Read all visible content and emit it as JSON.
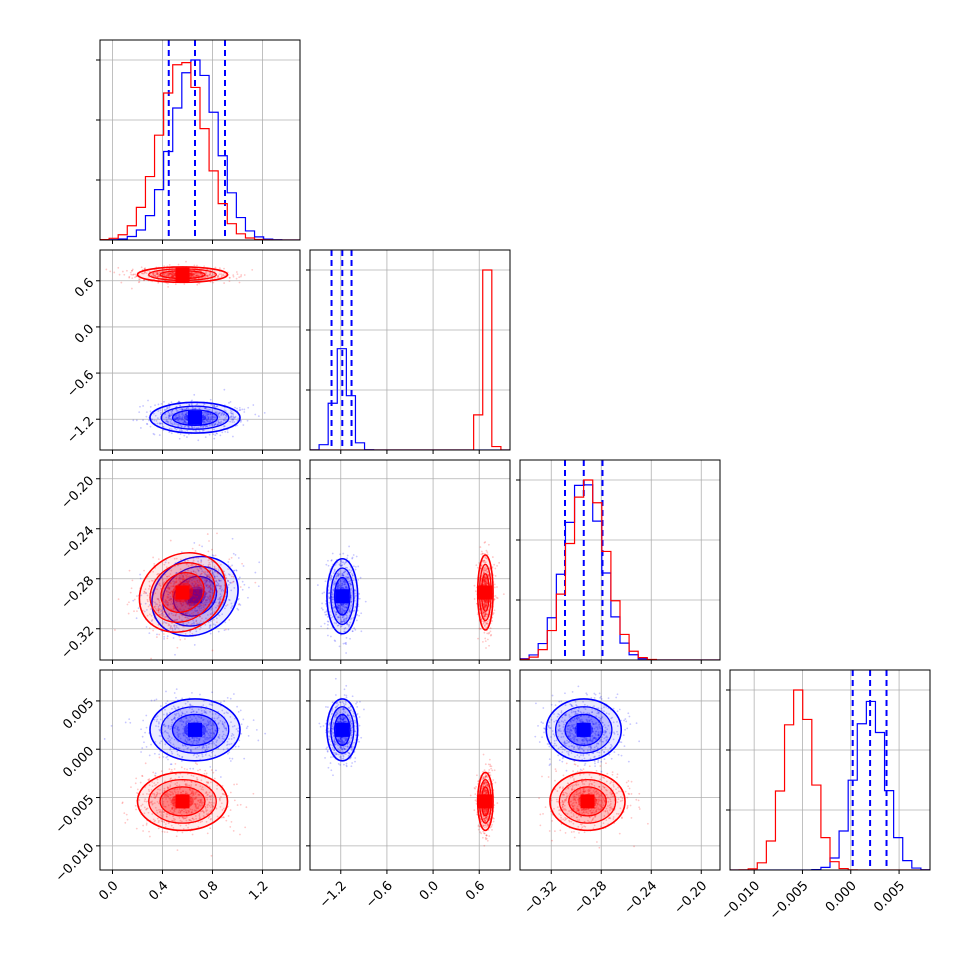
{
  "colors": {
    "series_a": "#0000ff",
    "series_b": "#ff0000",
    "grid": "#b0b0b0"
  },
  "chart_data": {
    "type": "corner",
    "grid": true,
    "parameters": [
      {
        "range": [
          -0.1,
          1.5
        ],
        "ticks": [
          0.0,
          0.4,
          0.8,
          1.2
        ],
        "tick_labels": [
          "0.0",
          "0.4",
          "0.8",
          "1.2"
        ]
      },
      {
        "range": [
          -1.6,
          1.0
        ],
        "ticks": [
          -1.2,
          -0.6,
          0.0,
          0.6
        ],
        "tick_labels": [
          "−1.2",
          "−0.6",
          "0.0",
          "0.6"
        ]
      },
      {
        "range": [
          -0.345,
          -0.185
        ],
        "ticks": [
          -0.32,
          -0.28,
          -0.24,
          -0.2
        ],
        "tick_labels": [
          "−0.32",
          "−0.28",
          "−0.24",
          "−0.20"
        ]
      },
      {
        "range": [
          -0.0125,
          0.0082
        ],
        "ticks": [
          -0.01,
          -0.005,
          0.0,
          0.005
        ],
        "tick_labels": [
          "−0.010",
          "−0.005",
          "0.000",
          "0.005"
        ]
      }
    ],
    "series": [
      {
        "color": "#0000ff",
        "mean": [
          0.66,
          -1.18,
          -0.294,
          0.002
        ],
        "sd": [
          0.18,
          0.1,
          0.015,
          0.0016
        ],
        "quantiles": [
          [
            0.45,
            0.66,
            0.9
          ],
          [
            -1.32,
            -1.18,
            -1.06
          ],
          [
            -0.309,
            -0.294,
            -0.279
          ],
          [
            0.0002,
            0.002,
            0.0037
          ]
        ]
      },
      {
        "color": "#ff0000",
        "mean": [
          0.56,
          0.68,
          -0.291,
          -0.0054
        ],
        "sd": [
          0.18,
          0.05,
          0.015,
          0.0015
        ]
      }
    ]
  }
}
